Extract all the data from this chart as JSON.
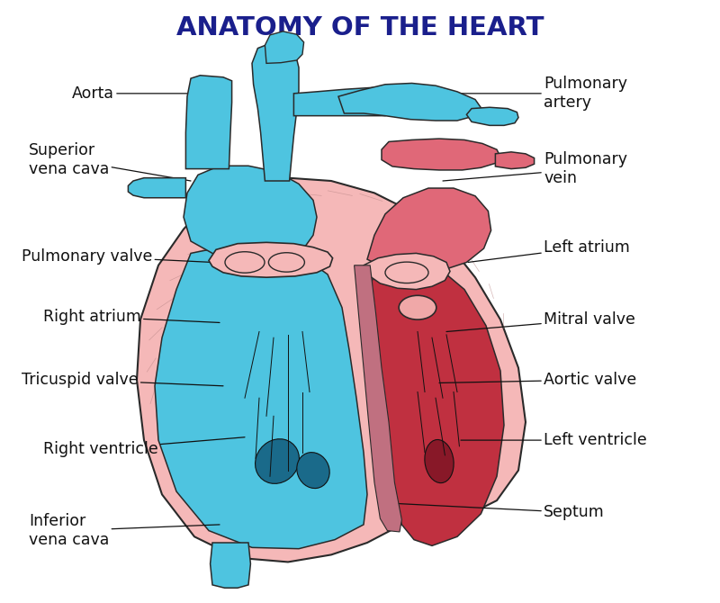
{
  "title": "ANATOMY OF THE HEART",
  "title_color": "#1a1f8c",
  "title_fontsize": 21,
  "title_fontweight": "bold",
  "bg_color": "#ffffff",
  "label_fontsize": 12.5,
  "label_color": "#111111",
  "blue": "#4ec4e0",
  "blue_dark": "#1a9fbe",
  "red_light": "#f0a0a8",
  "red_mid": "#e06878",
  "red_dark": "#c03040",
  "pink_wall": "#f5b8b8",
  "outline": "#2a2a2a",
  "labels_left": [
    {
      "text": "Aorta",
      "xt": 0.1,
      "yt": 0.845,
      "xp": 0.315,
      "yp": 0.845,
      "va": "center"
    },
    {
      "text": "Superior\nvena cava",
      "xt": 0.04,
      "yt": 0.735,
      "xp": 0.265,
      "yp": 0.7,
      "va": "center"
    },
    {
      "text": "Pulmonary valve",
      "xt": 0.03,
      "yt": 0.575,
      "xp": 0.295,
      "yp": 0.565,
      "va": "center"
    },
    {
      "text": "Right atrium",
      "xt": 0.06,
      "yt": 0.475,
      "xp": 0.305,
      "yp": 0.465,
      "va": "center"
    },
    {
      "text": "Tricuspid valve",
      "xt": 0.03,
      "yt": 0.37,
      "xp": 0.31,
      "yp": 0.36,
      "va": "center"
    },
    {
      "text": "Right ventricle",
      "xt": 0.06,
      "yt": 0.255,
      "xp": 0.34,
      "yp": 0.275,
      "va": "center"
    },
    {
      "text": "Inferior\nvena cava",
      "xt": 0.04,
      "yt": 0.12,
      "xp": 0.305,
      "yp": 0.13,
      "va": "center"
    }
  ],
  "labels_right": [
    {
      "text": "Pulmonary\nartery",
      "xt": 0.755,
      "yt": 0.845,
      "xp": 0.57,
      "yp": 0.845,
      "va": "center"
    },
    {
      "text": "Pulmonary\nvein",
      "xt": 0.755,
      "yt": 0.72,
      "xp": 0.615,
      "yp": 0.7,
      "va": "center"
    },
    {
      "text": "Left atrium",
      "xt": 0.755,
      "yt": 0.59,
      "xp": 0.65,
      "yp": 0.565,
      "va": "center"
    },
    {
      "text": "Mitral valve",
      "xt": 0.755,
      "yt": 0.47,
      "xp": 0.62,
      "yp": 0.45,
      "va": "center"
    },
    {
      "text": "Aortic valve",
      "xt": 0.755,
      "yt": 0.37,
      "xp": 0.61,
      "yp": 0.365,
      "va": "center"
    },
    {
      "text": "Left ventricle",
      "xt": 0.755,
      "yt": 0.27,
      "xp": 0.64,
      "yp": 0.27,
      "va": "center"
    },
    {
      "text": "Septum",
      "xt": 0.755,
      "yt": 0.15,
      "xp": 0.55,
      "yp": 0.165,
      "va": "center"
    }
  ]
}
